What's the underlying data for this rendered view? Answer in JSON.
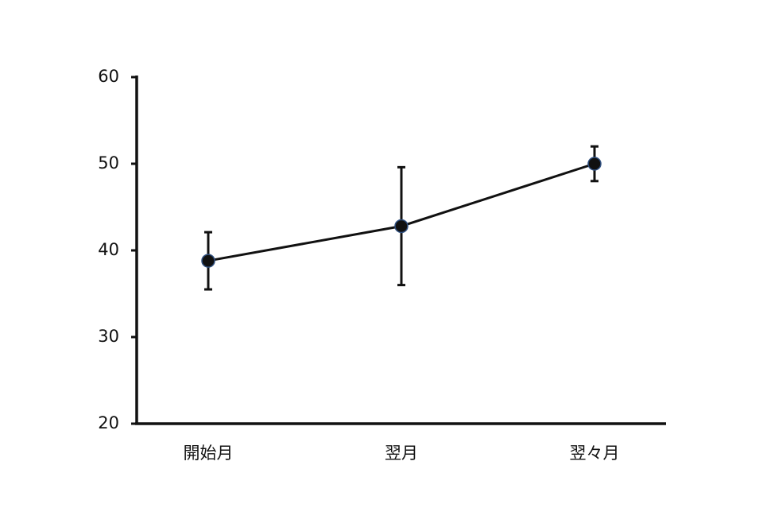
{
  "chart_data": {
    "type": "line",
    "categories": [
      "開始月",
      "翌月",
      "翌々月"
    ],
    "series": [
      {
        "color": "#111111",
        "values": [
          38.8,
          42.8,
          50.0
        ],
        "errors": [
          3.3,
          6.8,
          2.0
        ]
      }
    ],
    "ylim": [
      20,
      60
    ],
    "yticks": [
      20,
      30,
      40,
      50,
      60
    ],
    "grid": false
  }
}
